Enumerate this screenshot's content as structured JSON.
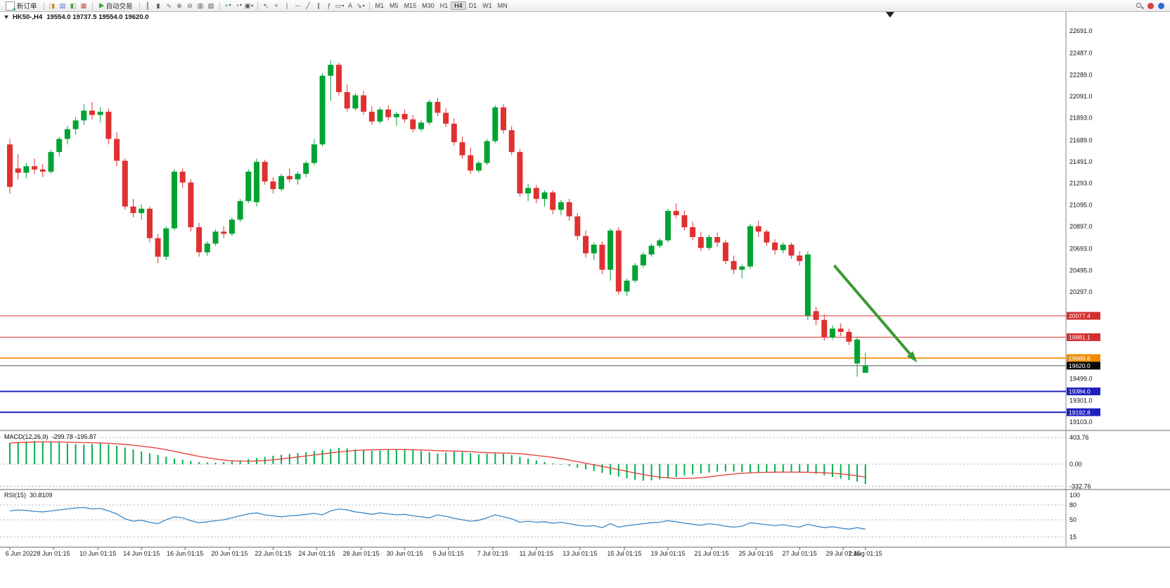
{
  "toolbar": {
    "new_order_label": "新订单",
    "auto_trading_label": "自动交易",
    "window_icons": [
      {
        "name": "market-watch-icon",
        "glyph": "◨",
        "color": "#c8922a"
      },
      {
        "name": "data-window-icon",
        "glyph": "▤",
        "color": "#4a6fd4"
      },
      {
        "name": "navigator-icon",
        "glyph": "◧",
        "color": "#3f9e3f"
      },
      {
        "name": "terminal-icon",
        "glyph": "▦",
        "color": "#c84a4a"
      }
    ],
    "chart_icons": [
      {
        "name": "bar-chart-icon",
        "glyph": "║"
      },
      {
        "name": "candlestick-chart-icon",
        "glyph": "▮"
      },
      {
        "name": "line-chart-icon",
        "glyph": "∿"
      },
      {
        "name": "zoom-in-icon",
        "glyph": "⊕"
      },
      {
        "name": "zoom-out-icon",
        "glyph": "⊖"
      },
      {
        "name": "tile-windows-icon",
        "glyph": "▥"
      },
      {
        "name": "cascade-windows-icon",
        "glyph": "▧"
      }
    ],
    "insert_icons": [
      {
        "name": "indicators-icon",
        "glyph": "+",
        "color": "#1e9e40",
        "caret": true
      },
      {
        "name": "periods-icon",
        "glyph": "◔",
        "caret": true
      },
      {
        "name": "templates-icon",
        "glyph": "▣",
        "caret": true
      }
    ],
    "draw_icons": [
      {
        "name": "cursor-icon",
        "glyph": "↖"
      },
      {
        "name": "crosshair-icon",
        "glyph": "+"
      },
      {
        "name": "vertical-line-icon",
        "glyph": "∣"
      },
      {
        "name": "horizontal-line-icon",
        "glyph": "─"
      },
      {
        "name": "trendline-icon",
        "glyph": "╱"
      },
      {
        "name": "channel-icon",
        "glyph": "∥"
      },
      {
        "name": "fibonacci-icon",
        "glyph": "ƒ"
      },
      {
        "name": "shapes-icon",
        "glyph": "▭",
        "caret": true
      },
      {
        "name": "text-icon",
        "glyph": "A"
      },
      {
        "name": "arrows-icon",
        "glyph": "⇘",
        "caret": true
      }
    ],
    "timeframes": [
      "M1",
      "M5",
      "M15",
      "M30",
      "H1",
      "H4",
      "D1",
      "W1",
      "MN"
    ],
    "active_timeframe": "H4",
    "right_icons": [
      {
        "name": "search-icon",
        "type": "search"
      },
      {
        "name": "notifications-icon",
        "type": "dot",
        "color": "#d64545"
      },
      {
        "name": "community-icon",
        "type": "dot",
        "color": "#2b6cd4"
      }
    ]
  },
  "chart": {
    "symbol_period": "HK50-,H4",
    "ohlc_text": "19554.0 19737.5 19554.0 19620.0"
  },
  "chart_data": {
    "type": "candlestick",
    "symbol": "HK50-",
    "timeframe": "H4",
    "current_bar": {
      "open": 19554.0,
      "high": 19737.5,
      "low": 19554.0,
      "close": 19620.0
    },
    "colors": {
      "up_candle": "#00A332",
      "down_candle": "#E03030",
      "macd_hist": "#00B050",
      "macd_signal": "#E53935",
      "rsi_line": "#3B87C8",
      "arrow": "#3D9A33"
    },
    "y_axis": {
      "visible_range": {
        "top": 22691.0,
        "bottom": 19103.0
      },
      "ticks": [
        22691.0,
        22487.0,
        22289.0,
        22091.0,
        21893.0,
        21689.0,
        21491.0,
        21293.0,
        21095.0,
        20897.0,
        20693.0,
        20495.0,
        20297.0,
        19499.0,
        19301.0,
        19103.0
      ]
    },
    "levels": [
      {
        "price": 20077.4,
        "line_color": "#E03030",
        "line_width": 1,
        "badge_color": "#D32F2F",
        "name": "resistance-line-1"
      },
      {
        "price": 19881.1,
        "line_color": "#E03030",
        "line_width": 1,
        "badge_color": "#D32F2F",
        "name": "resistance-line-2"
      },
      {
        "price": 19689.8,
        "line_color": "#F59A23",
        "line_width": 2,
        "badge_color": "#F08C00",
        "name": "pivot-line"
      },
      {
        "price": 19620.0,
        "line_color": "#555555",
        "line_width": 1,
        "badge_color": "#0A0A0A",
        "name": "current-price-line"
      },
      {
        "price": 19384.0,
        "line_color": "#2020C0",
        "line_width": 2,
        "badge_color": "#2020C0",
        "name": "support-line-1"
      },
      {
        "price": 19192.8,
        "line_color": "#2020C0",
        "line_width": 2,
        "badge_color": "#2020C0",
        "name": "support-line-2"
      }
    ],
    "candles": [
      [
        21650,
        21700,
        21200,
        21260
      ],
      [
        21430,
        21560,
        21330,
        21390
      ],
      [
        21390,
        21480,
        21340,
        21450
      ],
      [
        21450,
        21520,
        21380,
        21420
      ],
      [
        21420,
        21470,
        21350,
        21400
      ],
      [
        21400,
        21600,
        21380,
        21580
      ],
      [
        21580,
        21720,
        21540,
        21700
      ],
      [
        21700,
        21820,
        21650,
        21790
      ],
      [
        21790,
        21900,
        21740,
        21870
      ],
      [
        21870,
        22020,
        21830,
        21960
      ],
      [
        21960,
        22040,
        21880,
        21920
      ],
      [
        21920,
        21990,
        21850,
        21950
      ],
      [
        21950,
        21980,
        21650,
        21700
      ],
      [
        21700,
        21760,
        21450,
        21500
      ],
      [
        21500,
        21520,
        21050,
        21080
      ],
      [
        21080,
        21150,
        20980,
        21020
      ],
      [
        21020,
        21100,
        20960,
        21060
      ],
      [
        21060,
        21080,
        20750,
        20790
      ],
      [
        20790,
        20830,
        20560,
        20620
      ],
      [
        20620,
        20900,
        20590,
        20880
      ],
      [
        20880,
        21420,
        20860,
        21400
      ],
      [
        21400,
        21430,
        21250,
        21300
      ],
      [
        21300,
        21330,
        20850,
        20890
      ],
      [
        20890,
        20930,
        20620,
        20660
      ],
      [
        20660,
        20760,
        20630,
        20740
      ],
      [
        20740,
        20870,
        20720,
        20850
      ],
      [
        20850,
        20900,
        20790,
        20830
      ],
      [
        20830,
        20980,
        20810,
        20960
      ],
      [
        20960,
        21150,
        20940,
        21130
      ],
      [
        21130,
        21420,
        21110,
        21400
      ],
      [
        21120,
        21520,
        21080,
        21490
      ],
      [
        21490,
        21510,
        21280,
        21310
      ],
      [
        21310,
        21350,
        21200,
        21240
      ],
      [
        21240,
        21380,
        21220,
        21360
      ],
      [
        21360,
        21430,
        21300,
        21330
      ],
      [
        21330,
        21400,
        21280,
        21380
      ],
      [
        21380,
        21500,
        21350,
        21480
      ],
      [
        21480,
        21700,
        21460,
        21650
      ],
      [
        21650,
        22300,
        21630,
        22280
      ],
      [
        22280,
        22420,
        22050,
        22380
      ],
      [
        22380,
        22400,
        22100,
        22130
      ],
      [
        22130,
        22200,
        21950,
        21980
      ],
      [
        21980,
        22120,
        21960,
        22100
      ],
      [
        22100,
        22140,
        21920,
        21950
      ],
      [
        21950,
        22000,
        21830,
        21860
      ],
      [
        21860,
        21990,
        21840,
        21970
      ],
      [
        21970,
        22010,
        21870,
        21900
      ],
      [
        21900,
        21950,
        21820,
        21930
      ],
      [
        21930,
        21970,
        21850,
        21880
      ],
      [
        21880,
        21920,
        21760,
        21790
      ],
      [
        21790,
        21870,
        21770,
        21850
      ],
      [
        21850,
        22060,
        21830,
        22040
      ],
      [
        22040,
        22080,
        21910,
        21940
      ],
      [
        21940,
        21980,
        21810,
        21840
      ],
      [
        21840,
        21890,
        21640,
        21670
      ],
      [
        21670,
        21720,
        21520,
        21550
      ],
      [
        21550,
        21620,
        21380,
        21410
      ],
      [
        21410,
        21500,
        21390,
        21480
      ],
      [
        21480,
        21700,
        21460,
        21680
      ],
      [
        21680,
        22010,
        21660,
        21990
      ],
      [
        21990,
        22020,
        21750,
        21780
      ],
      [
        21780,
        21820,
        21550,
        21580
      ],
      [
        21580,
        21610,
        21170,
        21200
      ],
      [
        21200,
        21290,
        21130,
        21250
      ],
      [
        21250,
        21280,
        21110,
        21150
      ],
      [
        21150,
        21230,
        21080,
        21210
      ],
      [
        21210,
        21230,
        21010,
        21050
      ],
      [
        21050,
        21140,
        21000,
        21120
      ],
      [
        21120,
        21150,
        20950,
        20990
      ],
      [
        20990,
        21020,
        20770,
        20810
      ],
      [
        20810,
        20860,
        20610,
        20650
      ],
      [
        20650,
        20750,
        20590,
        20730
      ],
      [
        20730,
        20760,
        20460,
        20500
      ],
      [
        20500,
        20880,
        20400,
        20860
      ],
      [
        20860,
        20890,
        20270,
        20300
      ],
      [
        20300,
        20420,
        20260,
        20400
      ],
      [
        20400,
        20560,
        20380,
        20540
      ],
      [
        20540,
        20660,
        20520,
        20640
      ],
      [
        20640,
        20740,
        20620,
        20720
      ],
      [
        20720,
        20790,
        20700,
        20770
      ],
      [
        20770,
        21060,
        20750,
        21040
      ],
      [
        21040,
        21110,
        20970,
        21000
      ],
      [
        21000,
        21040,
        20860,
        20890
      ],
      [
        20890,
        20940,
        20770,
        20800
      ],
      [
        20800,
        20850,
        20670,
        20700
      ],
      [
        20700,
        20820,
        20680,
        20800
      ],
      [
        20800,
        20840,
        20710,
        20750
      ],
      [
        20750,
        20770,
        20550,
        20580
      ],
      [
        20580,
        20630,
        20460,
        20500
      ],
      [
        20500,
        20550,
        20420,
        20530
      ],
      [
        20530,
        20920,
        20510,
        20900
      ],
      [
        20900,
        20950,
        20800,
        20850
      ],
      [
        20850,
        20870,
        20720,
        20750
      ],
      [
        20750,
        20780,
        20640,
        20680
      ],
      [
        20680,
        20750,
        20650,
        20730
      ],
      [
        20730,
        20750,
        20600,
        20630
      ],
      [
        20630,
        20670,
        20540,
        20580
      ],
      [
        20080,
        20670,
        20040,
        20640
      ],
      [
        20120,
        20160,
        19990,
        20040
      ],
      [
        20040,
        20090,
        19850,
        19880
      ],
      [
        19880,
        19990,
        19860,
        19960
      ],
      [
        19960,
        20010,
        19890,
        19930
      ],
      [
        19930,
        19960,
        19810,
        19840
      ],
      [
        19640,
        19880,
        19520,
        19860
      ],
      [
        19554,
        19737.5,
        19554,
        19620
      ]
    ],
    "x_labels": [
      {
        "label": "6 Jun 2022",
        "i": 0
      },
      {
        "label": "8 Jun 01:15",
        "i": 5.3
      },
      {
        "label": "10 Jun 01:15",
        "i": 10.7
      },
      {
        "label": "14 Jun 01:15",
        "i": 16
      },
      {
        "label": "16 Jun 01:15",
        "i": 21.3
      },
      {
        "label": "20 Jun 01:15",
        "i": 26.7
      },
      {
        "label": "22 Jun 01:15",
        "i": 32
      },
      {
        "label": "24 Jun 01:15",
        "i": 37.3
      },
      {
        "label": "28 Jun 01:15",
        "i": 42.7
      },
      {
        "label": "30 Jun 01:15",
        "i": 48
      },
      {
        "label": "5 Jul 01:15",
        "i": 53.3
      },
      {
        "label": "7 Jul 01:15",
        "i": 58.7
      },
      {
        "label": "11 Jul 01:15",
        "i": 64
      },
      {
        "label": "13 Jul 01:15",
        "i": 69.3
      },
      {
        "label": "15 Jul 01:15",
        "i": 74.7
      },
      {
        "label": "19 Jul 01:15",
        "i": 80
      },
      {
        "label": "21 Jul 01:15",
        "i": 85.3
      },
      {
        "label": "25 Jul 01:15",
        "i": 90.7
      },
      {
        "label": "27 Jul 01:15",
        "i": 96
      },
      {
        "label": "29 Jul 01:15",
        "i": 101.3
      },
      {
        "label": "2 Aug 01:15",
        "i": 104
      }
    ],
    "trend_arrow": {
      "from": {
        "i": 100.2,
        "price": 20540
      },
      "to": {
        "i": 110.3,
        "price": 19650
      },
      "color": "#3D9A33",
      "width": 4
    },
    "shift_marker_i": 107,
    "indicators": {
      "macd": {
        "label": "MACD(12,26,9)",
        "values_text": "-299.78 -195.87",
        "main_value": -299.78,
        "signal_value": -195.87,
        "scale_labels": [
          403.76,
          0.0,
          -332.76
        ],
        "histogram": [
          320,
          332,
          342,
          350,
          344,
          336,
          326,
          314,
          302,
          296,
          305,
          315,
          298,
          278,
          252,
          222,
          192,
          166,
          140,
          112,
          88,
          66,
          48,
          34,
          26,
          22,
          30,
          44,
          60,
          78,
          96,
          112,
          128,
          142,
          156,
          170,
          184,
          198,
          214,
          232,
          248,
          238,
          226,
          214,
          202,
          208,
          216,
          222,
          228,
          216,
          200,
          182,
          162,
          176,
          192,
          184,
          168,
          148,
          158,
          172,
          158,
          138,
          112,
          84,
          58,
          34,
          12,
          -8,
          -28,
          -52,
          -78,
          -104,
          -132,
          -160,
          -188,
          -214,
          -236,
          -250,
          -244,
          -230,
          -212,
          -192,
          -172,
          -154,
          -138,
          -124,
          -114,
          -110,
          -112,
          -118,
          -126,
          -130,
          -128,
          -122,
          -116,
          -112,
          -116,
          -128,
          -146,
          -168,
          -192,
          -216,
          -240,
          -264,
          -299.78
        ]
      },
      "rsi": {
        "label": "RSI(15)",
        "value_text": "30.8109",
        "period": 15,
        "scale_labels": [
          100,
          80,
          50,
          15
        ],
        "level_lines": [
          80,
          50,
          15
        ],
        "values": [
          68,
          70,
          69,
          67,
          66,
          68,
          70,
          72,
          74,
          75,
          72,
          73,
          68,
          62,
          52,
          47,
          49,
          45,
          42,
          50,
          56,
          54,
          48,
          44,
          46,
          48,
          50,
          54,
          58,
          62,
          64,
          60,
          58,
          56,
          58,
          59,
          61,
          63,
          60,
          68,
          72,
          70,
          66,
          64,
          61,
          64,
          62,
          60,
          61,
          58,
          56,
          54,
          60,
          57,
          53,
          50,
          47,
          49,
          54,
          60,
          56,
          52,
          45,
          47,
          45,
          46,
          43,
          45,
          42,
          39,
          37,
          38,
          34,
          42,
          35,
          38,
          40,
          42,
          44,
          45,
          48,
          46,
          43,
          41,
          39,
          42,
          40,
          37,
          35,
          37,
          44,
          42,
          40,
          38,
          40,
          37,
          35,
          41,
          37,
          34,
          36,
          33,
          31,
          34,
          30.81
        ]
      }
    }
  }
}
